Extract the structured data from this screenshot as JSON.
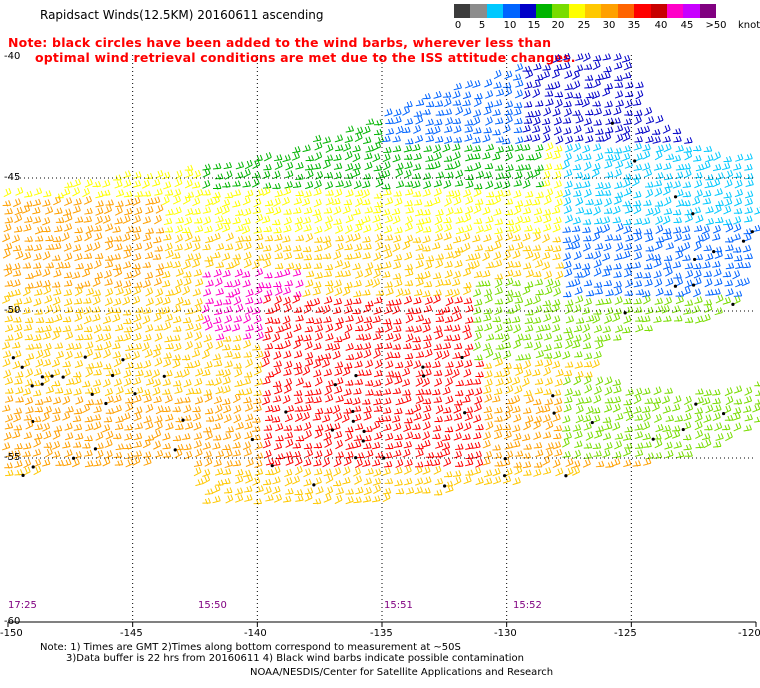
{
  "title": "Rapidsact Winds(12.5KM) 20160611 ascending",
  "note_lines": [
    "Note: black circles have been added to the wind barbs, wherever less than",
    "optimal wind retrieval conditions are met due to the ISS attitude changes."
  ],
  "legend": {
    "colors": [
      "#3c3c3c",
      "#8c8c8c",
      "#00c8ff",
      "#0064ff",
      "#0000c8",
      "#00b400",
      "#78dc00",
      "#ffff00",
      "#ffc800",
      "#ffa000",
      "#ff6400",
      "#ff0000",
      "#c80000",
      "#ff00c8",
      "#c800ff",
      "#800080"
    ],
    "labels": [
      "0",
      "5",
      "10",
      "15",
      "20",
      "25",
      "30",
      "35",
      "40",
      "45",
      ">50"
    ],
    "unit": "knots"
  },
  "axes": {
    "lat_labels": [
      "-40",
      "-45",
      "-50",
      "-55",
      "-60"
    ],
    "lon_labels": [
      "-150",
      "-145",
      "-140",
      "-135",
      "-130",
      "-125",
      "-120"
    ]
  },
  "times": [
    "17:25",
    "15:50",
    "15:51",
    "15:52"
  ],
  "footnotes": [
    "Note: 1) Times are GMT 2)Times along bottom correspond to measurement at ~50S",
    "3)Data buffer is 22 hrs from 20160611 4) Black wind barbs indicate possible contamination",
    "NOAA/NESDIS/Center for Satellite Applications and Research"
  ],
  "map_data": {
    "lon_range": [
      -150,
      -120
    ],
    "lat_range": [
      -60,
      -40
    ],
    "gridlines": "dotted",
    "wind_field": "wind barbs colored by speed in knots; black circles mark flagged retrievals"
  }
}
